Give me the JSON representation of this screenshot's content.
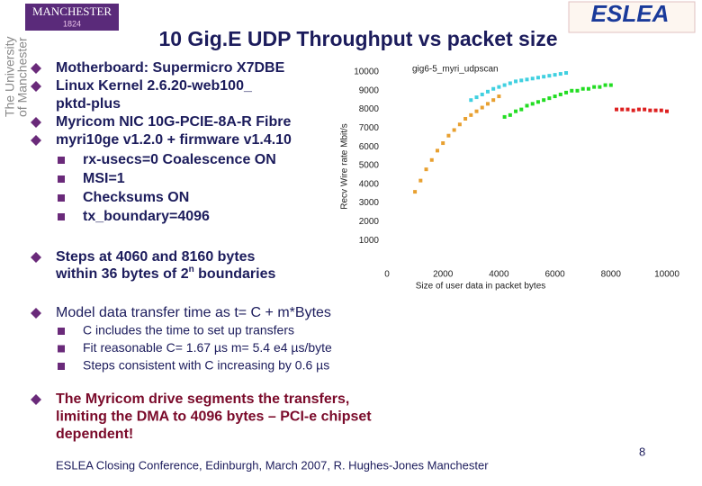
{
  "header": {
    "logo_left": "MANCHESTER",
    "logo_year": "1824",
    "university": [
      "The University",
      "of Manchester"
    ],
    "logo_right": "ESLEA",
    "title": "10 Gig.E UDP Throughput vs packet size"
  },
  "bullets": [
    {
      "lines": [
        "Motherboard: Supermicro X7DBE"
      ]
    },
    {
      "lines": [
        "Linux Kernel  2.6.20-web100_",
        "pktd-plus"
      ]
    },
    {
      "lines": [
        "Myricom NIC 10G-PCIE-8A-R Fibre"
      ]
    },
    {
      "lines": [
        "myri10ge v1.2.0 + firmware v1.4.10"
      ],
      "sub": [
        "rx-usecs=0  Coalescence ON",
        "MSI=1",
        "Checksums ON",
        "tx_boundary=4096"
      ]
    }
  ],
  "steps": {
    "line1": "Steps at 4060 and 8160 bytes",
    "line2": "within 36 bytes of 2",
    "sup": "n",
    "line2_end": " boundaries"
  },
  "model": {
    "text": "Model data transfer time as t= C + m*Bytes",
    "sub": [
      "C includes the time to set up transfers",
      "Fit reasonable C= 1.67 µs m= 5.4 e4 µs/byte",
      "Steps consistent with C increasing by 0.6 µs"
    ]
  },
  "myricom": {
    "lines": [
      "The Myricom drive segments the transfers,",
      "limiting the DMA to 4096 bytes – PCI-e chipset",
      "dependent!"
    ]
  },
  "footer": {
    "text": "ESLEA Closing Conference, Edinburgh, March 2007,  R. Hughes-Jones  Manchester",
    "page": "8"
  },
  "chart_data": {
    "type": "scatter",
    "title": "gig6-5_myri_udpscan",
    "xlabel": "Size of user data in packet bytes",
    "ylabel": "Recv Wire rate Mbit/s",
    "xlim": [
      0,
      10000
    ],
    "xticks": [
      0,
      2000,
      4000,
      6000,
      8000,
      10000
    ],
    "ylim": [
      0,
      10000
    ],
    "yticks": [
      1000,
      2000,
      3000,
      4000,
      5000,
      6000,
      7000,
      8000,
      9000,
      10000
    ],
    "series": [
      {
        "color": "#e8a030",
        "x": [
          1000,
          1200,
          1400,
          1600,
          1800,
          2000,
          2200,
          2400,
          2600,
          2800,
          3000,
          3200,
          3400,
          3600,
          3800,
          4000
        ],
        "values": [
          3600,
          4200,
          4800,
          5300,
          5800,
          6200,
          6600,
          6900,
          7200,
          7500,
          7700,
          7900,
          8100,
          8300,
          8500,
          8700
        ]
      },
      {
        "color": "#40d0e0",
        "x": [
          3000,
          3200,
          3400,
          3600,
          3800,
          4000,
          4200,
          4400,
          4600,
          4800,
          5000,
          5200,
          5400,
          5600,
          5800,
          6000,
          6200,
          6400
        ],
        "values": [
          8500,
          8650,
          8800,
          8950,
          9100,
          9200,
          9300,
          9400,
          9500,
          9550,
          9600,
          9650,
          9700,
          9750,
          9800,
          9850,
          9900,
          9950
        ]
      },
      {
        "color": "#22dd22",
        "x": [
          4200,
          4400,
          4600,
          4800,
          5000,
          5200,
          5400,
          5600,
          5800,
          6000,
          6200,
          6400,
          6600,
          6800,
          7000,
          7200,
          7400,
          7600,
          7800,
          8000
        ],
        "values": [
          7600,
          7700,
          7900,
          8000,
          8200,
          8300,
          8400,
          8500,
          8600,
          8700,
          8800,
          8900,
          9000,
          9000,
          9100,
          9100,
          9200,
          9200,
          9300,
          9300
        ]
      },
      {
        "color": "#dd2020",
        "x": [
          8200,
          8400,
          8600,
          8800,
          9000,
          9200,
          9400,
          9600,
          9800,
          10000
        ],
        "values": [
          8000,
          8000,
          8000,
          7950,
          8000,
          8000,
          7950,
          7950,
          7950,
          7900
        ]
      }
    ]
  }
}
